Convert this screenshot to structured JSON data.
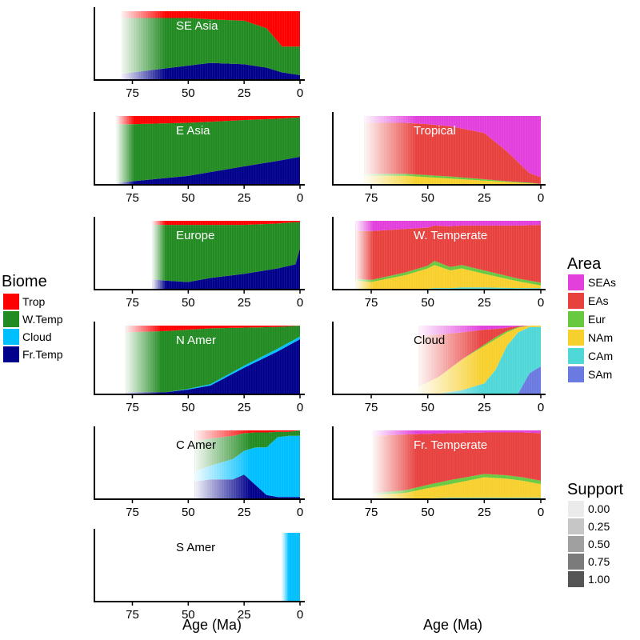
{
  "chart_data": {
    "type": "area",
    "x_axis": {
      "label": "Age (Ma)",
      "ticks": [
        75,
        50,
        25,
        0
      ],
      "range": [
        92,
        0
      ],
      "reversed": true
    },
    "legends": {
      "biome": {
        "title": "Biome",
        "entries": [
          {
            "label": "Trop",
            "color": "#ff0000"
          },
          {
            "label": "W.Temp",
            "color": "#228b22"
          },
          {
            "label": "Cloud",
            "color": "#00bfff"
          },
          {
            "label": "Fr.Temp",
            "color": "#00008b"
          }
        ]
      },
      "area": {
        "title": "Area",
        "entries": [
          {
            "label": "SEAs",
            "color": "#e23fdc"
          },
          {
            "label": "EAs",
            "color": "#e8423f"
          },
          {
            "label": "Eur",
            "color": "#68c93f"
          },
          {
            "label": "NAm",
            "color": "#f7d02e"
          },
          {
            "label": "CAm",
            "color": "#50d8d8"
          },
          {
            "label": "SAm",
            "color": "#6a7ae0"
          }
        ]
      },
      "support": {
        "title": "Support",
        "entries": [
          {
            "label": "0.00",
            "value": 0.0
          },
          {
            "label": "0.25",
            "value": 0.25
          },
          {
            "label": "0.50",
            "value": 0.5
          },
          {
            "label": "0.75",
            "value": 0.75
          },
          {
            "label": "1.00",
            "value": 1.0
          }
        ]
      }
    },
    "panels": [
      {
        "title": "SE Asia",
        "col": 0,
        "row": 0,
        "title_color": "#ffffff",
        "start_age": 80,
        "fade_to": 60,
        "stack": [
          "Fr.Temp",
          "Cloud",
          "W.Temp",
          "Trop"
        ],
        "ages": [
          80,
          75,
          50,
          40,
          25,
          15,
          8,
          0
        ],
        "series": {
          "Fr.Temp": [
            0.08,
            0.1,
            0.2,
            0.24,
            0.22,
            0.17,
            0.1,
            0.06
          ],
          "Cloud": [
            0,
            0,
            0,
            0,
            0,
            0,
            0,
            0
          ],
          "W.Temp": [
            0.82,
            0.8,
            0.7,
            0.64,
            0.64,
            0.58,
            0.38,
            0.42
          ],
          "Trop": [
            0.1,
            0.1,
            0.1,
            0.12,
            0.14,
            0.25,
            0.52,
            0.52
          ]
        }
      },
      {
        "title": "E Asia",
        "col": 0,
        "row": 1,
        "title_color": "#ffffff",
        "start_age": 82,
        "fade_to": 74,
        "stack": [
          "Fr.Temp",
          "Cloud",
          "W.Temp",
          "Trop"
        ],
        "ages": [
          82,
          75,
          50,
          25,
          10,
          0
        ],
        "series": {
          "Fr.Temp": [
            0.02,
            0.04,
            0.12,
            0.26,
            0.34,
            0.4
          ],
          "Cloud": [
            0,
            0,
            0,
            0,
            0,
            0
          ],
          "W.Temp": [
            0.86,
            0.84,
            0.78,
            0.68,
            0.62,
            0.58
          ],
          "Trop": [
            0.12,
            0.12,
            0.1,
            0.06,
            0.04,
            0.02
          ]
        }
      },
      {
        "title": "Europe",
        "col": 0,
        "row": 2,
        "title_color": "#ffffff",
        "start_age": 66,
        "fade_to": 60,
        "stack": [
          "Fr.Temp",
          "Cloud",
          "W.Temp",
          "Trop"
        ],
        "ages": [
          66,
          60,
          50,
          40,
          25,
          10,
          2,
          0
        ],
        "series": {
          "Fr.Temp": [
            0.14,
            0.12,
            0.1,
            0.16,
            0.22,
            0.3,
            0.36,
            0.6
          ],
          "Cloud": [
            0,
            0,
            0,
            0,
            0,
            0,
            0,
            0
          ],
          "W.Temp": [
            0.8,
            0.82,
            0.84,
            0.78,
            0.72,
            0.66,
            0.62,
            0.38
          ],
          "Trop": [
            0.06,
            0.06,
            0.06,
            0.06,
            0.06,
            0.04,
            0.02,
            0.02
          ]
        }
      },
      {
        "title": "N Amer",
        "col": 0,
        "row": 3,
        "title_color": "#ffffff",
        "start_age": 78,
        "fade_to": 62,
        "stack": [
          "Fr.Temp",
          "Cloud",
          "W.Temp",
          "Trop"
        ],
        "ages": [
          78,
          60,
          50,
          40,
          25,
          10,
          0
        ],
        "series": {
          "Fr.Temp": [
            0.02,
            0.02,
            0.06,
            0.12,
            0.38,
            0.62,
            0.8
          ],
          "Cloud": [
            0,
            0,
            0.01,
            0.02,
            0.03,
            0.04,
            0.04
          ],
          "W.Temp": [
            0.88,
            0.9,
            0.87,
            0.82,
            0.56,
            0.32,
            0.16
          ],
          "Trop": [
            0.1,
            0.08,
            0.06,
            0.04,
            0.03,
            0.02,
            0
          ]
        }
      },
      {
        "title": "C Amer",
        "col": 0,
        "row": 4,
        "title_color": "#000000",
        "start_age": 47,
        "fade_to": 22,
        "stack": [
          "Fr.Temp",
          "Cloud",
          "W.Temp",
          "Trop"
        ],
        "ages": [
          47,
          40,
          30,
          25,
          20,
          15,
          10,
          5,
          0
        ],
        "series": {
          "Fr.Temp": [
            0.25,
            0.28,
            0.28,
            0.35,
            0.2,
            0.05,
            0.02,
            0.02,
            0.02
          ],
          "Cloud": [
            0.15,
            0.2,
            0.3,
            0.35,
            0.55,
            0.7,
            0.88,
            0.9,
            0.9
          ],
          "W.Temp": [
            0.45,
            0.4,
            0.34,
            0.26,
            0.22,
            0.22,
            0.08,
            0.06,
            0.08
          ],
          "Trop": [
            0.15,
            0.12,
            0.08,
            0.04,
            0.03,
            0.03,
            0.02,
            0.02,
            0
          ]
        }
      },
      {
        "title": "S Amer",
        "col": 0,
        "row": 5,
        "title_color": "#000000",
        "start_age": 8,
        "fade_to": 5,
        "stack": [
          "Fr.Temp",
          "Cloud",
          "W.Temp",
          "Trop"
        ],
        "ages": [
          8,
          0
        ],
        "series": {
          "Fr.Temp": [
            0,
            0
          ],
          "Cloud": [
            1,
            1
          ],
          "W.Temp": [
            0,
            0
          ],
          "Trop": [
            0,
            0
          ]
        }
      },
      {
        "title": "Tropical",
        "col": 1,
        "row": 1,
        "title_color": "#ffffff",
        "start_age": 78,
        "fade_to": 55,
        "stack": [
          "SAm",
          "CAm",
          "NAm",
          "Eur",
          "EAs",
          "SEAs"
        ],
        "ages": [
          78,
          60,
          50,
          40,
          25,
          15,
          5,
          0
        ],
        "series": {
          "SAm": [
            0,
            0,
            0,
            0,
            0,
            0,
            0,
            0
          ],
          "CAm": [
            0,
            0,
            0,
            0,
            0,
            0,
            0,
            0
          ],
          "NAm": [
            0.12,
            0.12,
            0.1,
            0.08,
            0.05,
            0.03,
            0.01,
            0
          ],
          "Eur": [
            0.03,
            0.03,
            0.03,
            0.03,
            0.02,
            0.01,
            0.01,
            0
          ],
          "EAs": [
            0.75,
            0.75,
            0.75,
            0.74,
            0.68,
            0.44,
            0.14,
            0.1
          ],
          "SEAs": [
            0.1,
            0.1,
            0.12,
            0.15,
            0.25,
            0.52,
            0.84,
            0.9
          ]
        }
      },
      {
        "title": "W. Temperate",
        "col": 1,
        "row": 2,
        "title_color": "#ffffff",
        "start_age": 82,
        "fade_to": 74,
        "stack": [
          "SAm",
          "CAm",
          "NAm",
          "Eur",
          "EAs",
          "SEAs"
        ],
        "ages": [
          82,
          75,
          60,
          50,
          47,
          40,
          35,
          25,
          10,
          0
        ],
        "series": {
          "SAm": [
            0,
            0,
            0,
            0,
            0,
            0,
            0,
            0,
            0,
            0
          ],
          "CAm": [
            0,
            0,
            0,
            0,
            0.01,
            0.01,
            0.02,
            0.02,
            0.01,
            0.01
          ],
          "NAm": [
            0.12,
            0.1,
            0.2,
            0.3,
            0.34,
            0.26,
            0.28,
            0.2,
            0.1,
            0.04
          ],
          "Eur": [
            0.03,
            0.03,
            0.04,
            0.04,
            0.06,
            0.05,
            0.05,
            0.05,
            0.04,
            0.04
          ],
          "EAs": [
            0.7,
            0.72,
            0.64,
            0.56,
            0.52,
            0.6,
            0.58,
            0.66,
            0.78,
            0.85
          ],
          "SEAs": [
            0.15,
            0.15,
            0.12,
            0.1,
            0.07,
            0.08,
            0.07,
            0.07,
            0.07,
            0.06
          ]
        }
      },
      {
        "title": "Cloud",
        "col": 1,
        "row": 3,
        "title_color": "#000000",
        "start_age": 54,
        "fade_to": 26,
        "stack": [
          "SAm",
          "CAm",
          "NAm",
          "Eur",
          "EAs",
          "SEAs"
        ],
        "ages": [
          54,
          45,
          35,
          25,
          20,
          15,
          10,
          5,
          0
        ],
        "series": {
          "SAm": [
            0,
            0,
            0,
            0,
            0,
            0,
            0,
            0.3,
            0.4
          ],
          "CAm": [
            0,
            0,
            0.05,
            0.15,
            0.35,
            0.7,
            0.9,
            0.68,
            0.58
          ],
          "NAm": [
            0.1,
            0.25,
            0.45,
            0.55,
            0.45,
            0.2,
            0.07,
            0.02,
            0.02
          ],
          "Eur": [
            0,
            0,
            0,
            0.02,
            0.03,
            0.02,
            0.01,
            0,
            0
          ],
          "EAs": [
            0.75,
            0.62,
            0.4,
            0.22,
            0.12,
            0.05,
            0.01,
            0,
            0
          ],
          "SEAs": [
            0.15,
            0.13,
            0.1,
            0.06,
            0.05,
            0.03,
            0.01,
            0,
            0
          ]
        }
      },
      {
        "title": "Fr. Temperate",
        "col": 1,
        "row": 4,
        "title_color": "#ffffff",
        "start_age": 74,
        "fade_to": 55,
        "stack": [
          "SAm",
          "CAm",
          "NAm",
          "Eur",
          "EAs",
          "SEAs"
        ],
        "ages": [
          74,
          60,
          50,
          40,
          25,
          15,
          8,
          0
        ],
        "series": {
          "SAm": [
            0,
            0,
            0,
            0,
            0,
            0,
            0,
            0
          ],
          "CAm": [
            0,
            0,
            0,
            0.01,
            0.01,
            0.01,
            0.01,
            0.01
          ],
          "NAm": [
            0.05,
            0.08,
            0.15,
            0.2,
            0.3,
            0.28,
            0.25,
            0.2
          ],
          "Eur": [
            0.03,
            0.04,
            0.05,
            0.06,
            0.05,
            0.05,
            0.05,
            0.05
          ],
          "EAs": [
            0.84,
            0.82,
            0.75,
            0.69,
            0.61,
            0.63,
            0.66,
            0.7
          ],
          "SEAs": [
            0.08,
            0.06,
            0.05,
            0.04,
            0.03,
            0.03,
            0.03,
            0.04
          ]
        }
      }
    ]
  }
}
